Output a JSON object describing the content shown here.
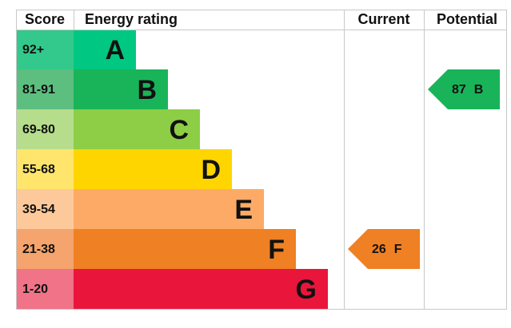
{
  "header": {
    "score": "Score",
    "rating": "Energy rating",
    "current": "Current",
    "potential": "Potential"
  },
  "bands": [
    {
      "score": "92+",
      "letter": "A",
      "color": "#00c781",
      "score_color": "#33c98c"
    },
    {
      "score": "81-91",
      "letter": "B",
      "color": "#19b459",
      "score_color": "#5dbf7f"
    },
    {
      "score": "69-80",
      "letter": "C",
      "color": "#8dce46",
      "score_color": "#b6dd8b"
    },
    {
      "score": "55-68",
      "letter": "D",
      "color": "#ffd500",
      "score_color": "#ffe56b"
    },
    {
      "score": "39-54",
      "letter": "E",
      "color": "#fcaa65",
      "score_color": "#fdc99a"
    },
    {
      "score": "21-38",
      "letter": "F",
      "color": "#ef8023",
      "score_color": "#f4a46c"
    },
    {
      "score": "1-20",
      "letter": "G",
      "color": "#e9153b",
      "score_color": "#f07387"
    }
  ],
  "current": {
    "value": 26,
    "letter": "F"
  },
  "potential": {
    "value": 87,
    "letter": "B"
  }
}
